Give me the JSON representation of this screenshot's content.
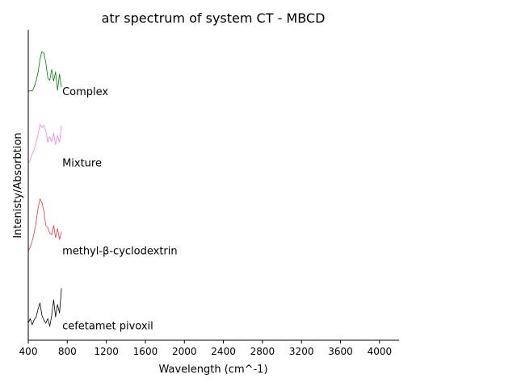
{
  "chart_data": {
    "type": "line",
    "title": "atr spectrum of system CT - MBCD",
    "xlabel": "Wavelength (cm^-1)",
    "ylabel": "Intenisty/Absorbtion",
    "xlim": [
      400,
      4200
    ],
    "x_ticks": [
      400,
      800,
      1200,
      1600,
      2000,
      2400,
      2800,
      3200,
      3600,
      4000
    ],
    "x_tick_labels": [
      "400",
      "800",
      "1200",
      "1600",
      "2000",
      "2400",
      "2800",
      "3200",
      "3600",
      "4000"
    ],
    "ylim": [
      0,
      4.0
    ],
    "y_ticks_shown": false,
    "grid": false,
    "legend": "none",
    "series": [
      {
        "name": "Complex",
        "color": "#008000",
        "x": [
          400,
          420,
          440,
          460,
          480,
          500,
          520,
          540,
          560,
          580,
          600,
          620,
          640,
          660,
          680,
          700,
          720,
          740
        ],
        "y": [
          3.2,
          3.22,
          3.21,
          3.26,
          3.34,
          3.45,
          3.62,
          3.72,
          3.7,
          3.58,
          3.38,
          3.35,
          3.49,
          3.34,
          3.46,
          3.22,
          3.43,
          3.26
        ]
      },
      {
        "name": "Mixture",
        "color": "#ee82ee",
        "x": [
          400,
          420,
          440,
          460,
          480,
          500,
          520,
          540,
          560,
          580,
          600,
          620,
          640,
          660,
          680,
          700,
          720,
          740
        ],
        "y": [
          2.28,
          2.32,
          2.4,
          2.45,
          2.55,
          2.65,
          2.78,
          2.74,
          2.77,
          2.7,
          2.55,
          2.62,
          2.56,
          2.67,
          2.52,
          2.64,
          2.55,
          2.76
        ]
      },
      {
        "name": "methyl-β-cyclodextrin",
        "color": "#e8383d",
        "x": [
          400,
          420,
          440,
          460,
          480,
          500,
          520,
          540,
          560,
          580,
          600,
          620,
          640,
          660,
          680,
          700,
          720,
          740
        ],
        "y": [
          1.15,
          1.2,
          1.28,
          1.38,
          1.52,
          1.7,
          1.82,
          1.78,
          1.66,
          1.48,
          1.45,
          1.38,
          1.36,
          1.48,
          1.32,
          1.44,
          1.3,
          1.4
        ]
      },
      {
        "name": "cefetamet pivoxil",
        "color": "#000000",
        "x": [
          400,
          420,
          440,
          460,
          480,
          500,
          520,
          540,
          560,
          580,
          600,
          620,
          640,
          660,
          680,
          700,
          720,
          740
        ],
        "y": [
          0.22,
          0.28,
          0.2,
          0.26,
          0.3,
          0.4,
          0.48,
          0.32,
          0.26,
          0.22,
          0.28,
          0.18,
          0.32,
          0.52,
          0.3,
          0.46,
          0.35,
          0.67
        ]
      }
    ]
  }
}
